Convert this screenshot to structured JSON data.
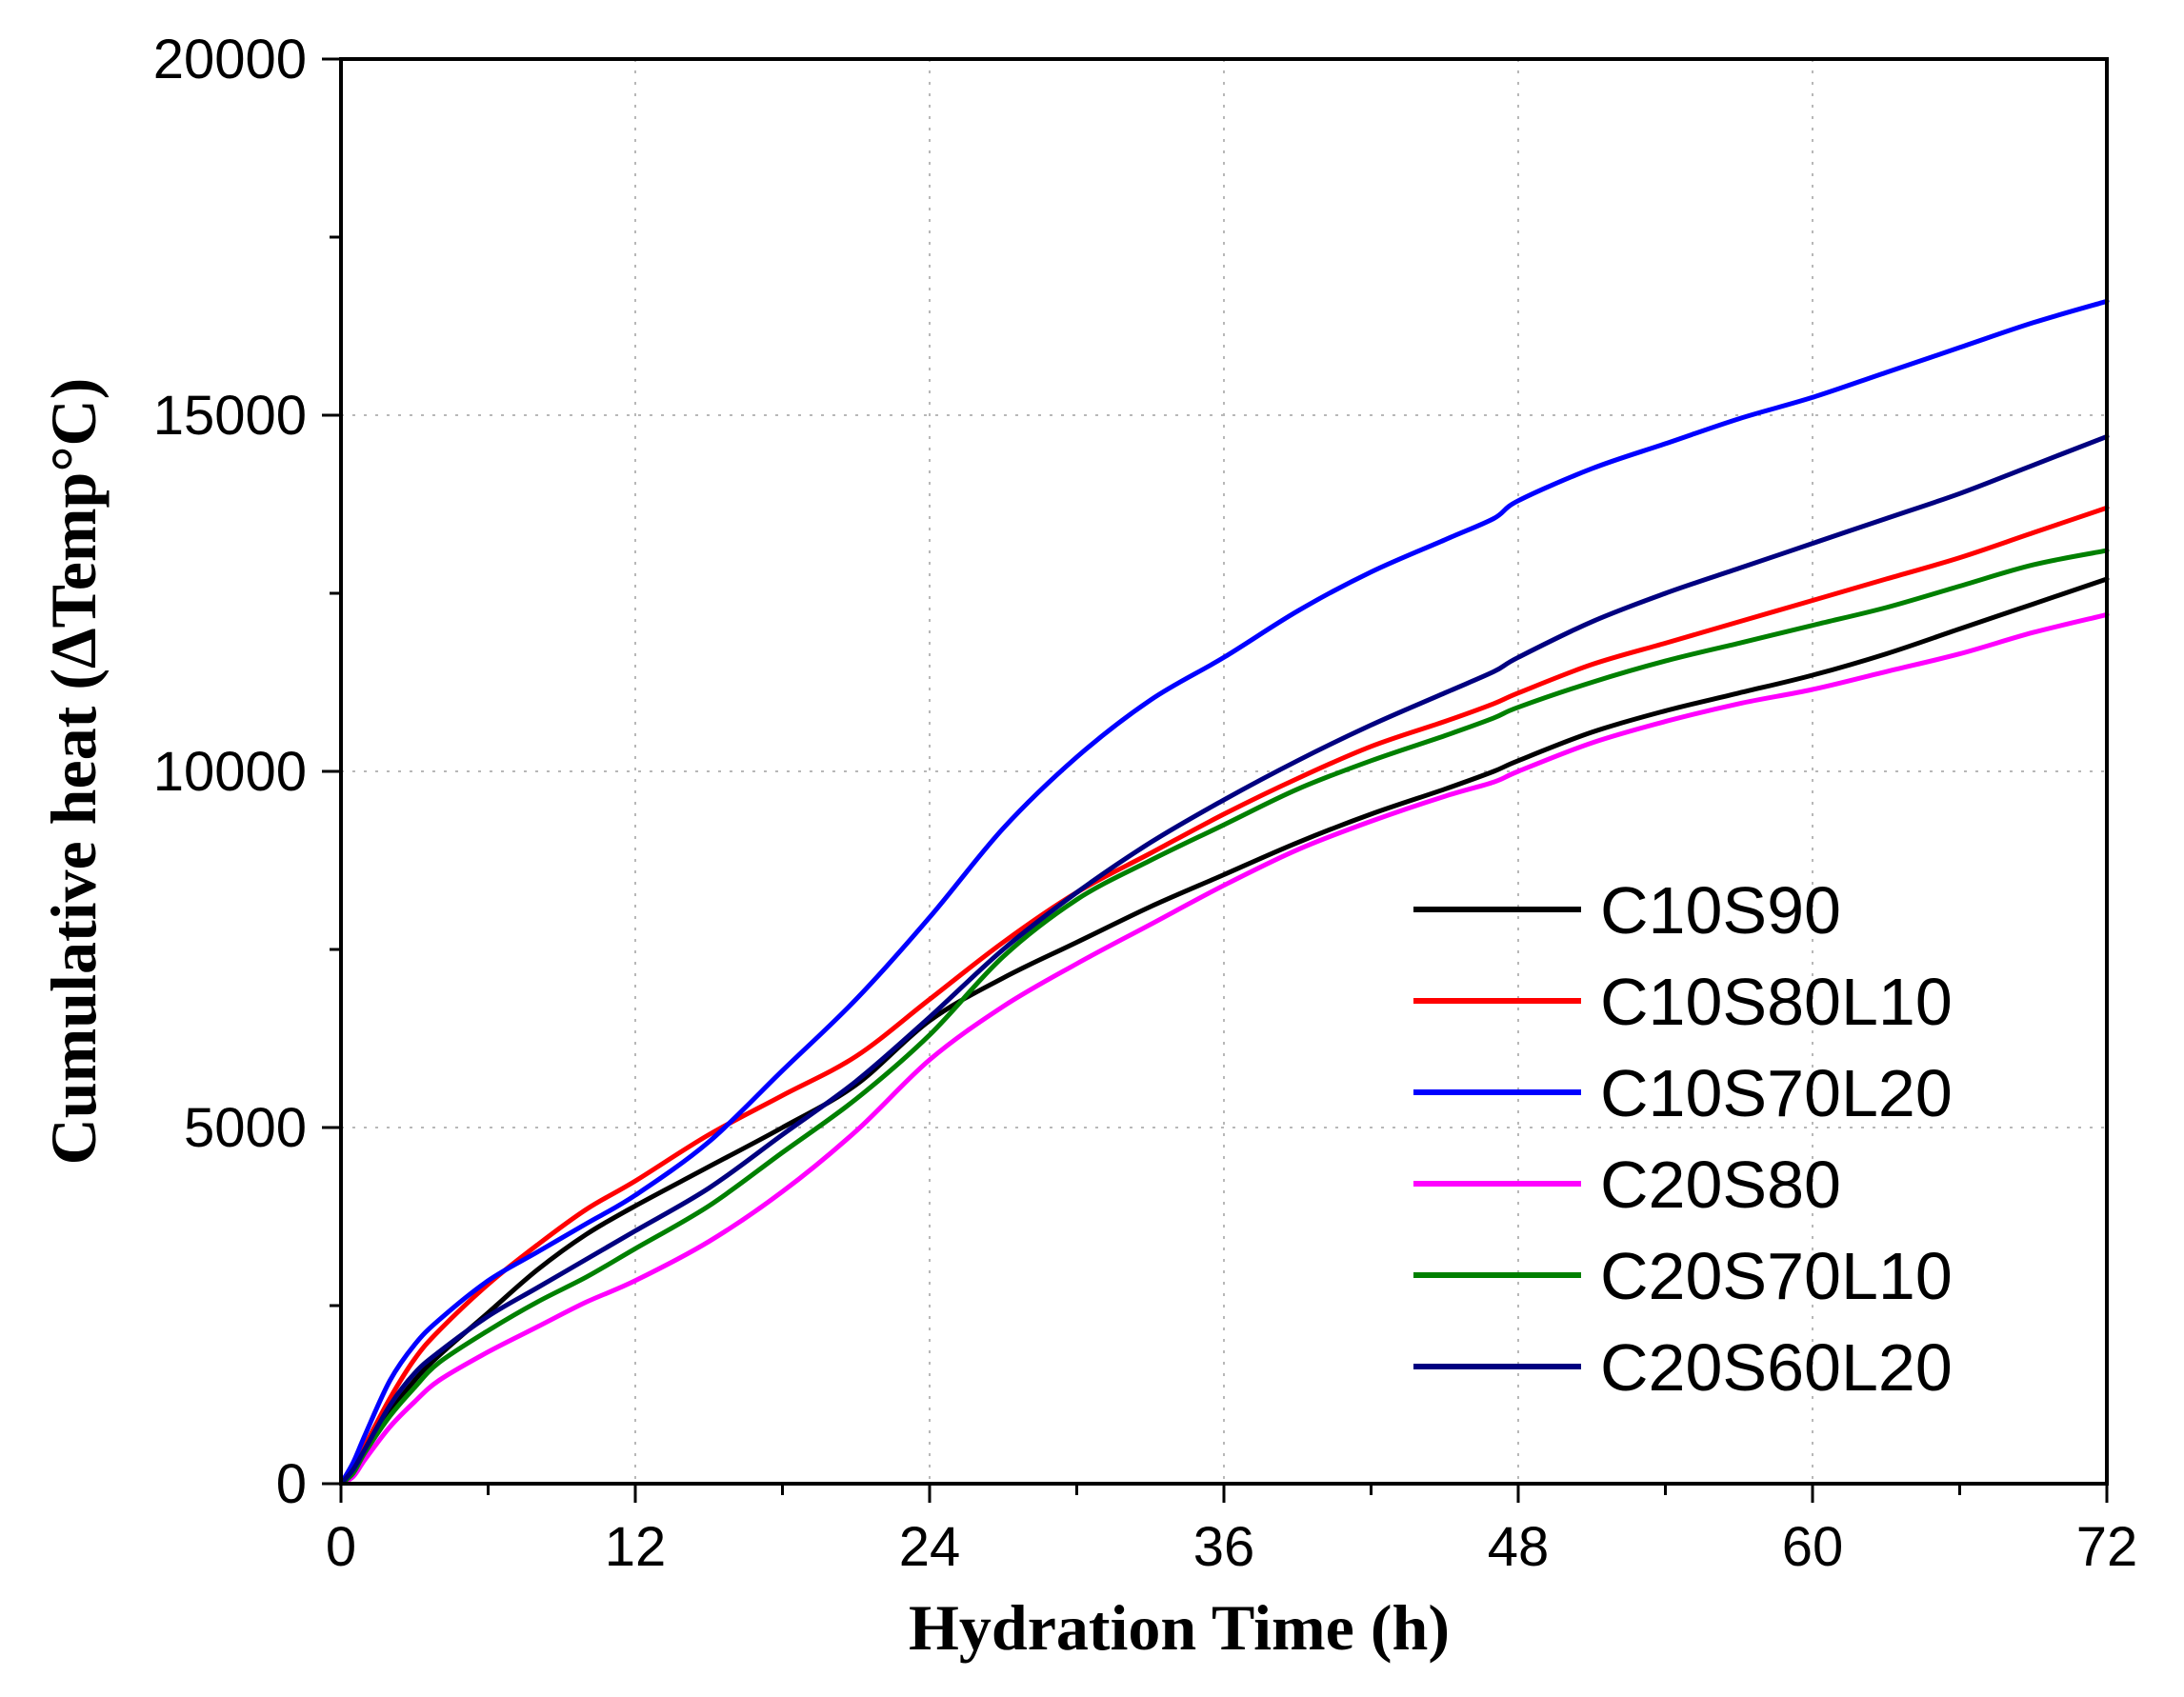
{
  "chart_data": {
    "type": "line",
    "title": "",
    "xlabel": "Hydration Time (h)",
    "ylabel": "Cumulative heat (ΔTemp°C)",
    "xlim": [
      0,
      72
    ],
    "ylim": [
      0,
      20000
    ],
    "xticks": [
      0,
      12,
      24,
      36,
      48,
      60,
      72
    ],
    "xtick_labels": [
      "0",
      "12",
      "24",
      "36",
      "48",
      "60",
      "72"
    ],
    "yticks": [
      0,
      5000,
      10000,
      15000,
      20000
    ],
    "ytick_labels": [
      "0",
      "5000",
      "10000",
      "15000",
      "20000"
    ],
    "grid": true,
    "legend_position": "bottom-right",
    "series": [
      {
        "name": "C10S90",
        "color": "#000000",
        "x": [
          0,
          0.5,
          1,
          2,
          3,
          4,
          6,
          8,
          10,
          12,
          15,
          18,
          21,
          24,
          27,
          30,
          33,
          36,
          39,
          42,
          45,
          47,
          48,
          51,
          54,
          57,
          60,
          63,
          66,
          69,
          72
        ],
        "y": [
          0,
          150,
          450,
          1000,
          1450,
          1800,
          2400,
          3000,
          3500,
          3900,
          4450,
          5000,
          5600,
          6500,
          7100,
          7600,
          8100,
          8550,
          9000,
          9400,
          9750,
          10000,
          10150,
          10550,
          10850,
          11100,
          11350,
          11650,
          12000,
          12350,
          12700
        ]
      },
      {
        "name": "C10S80L10",
        "color": "#ff0000",
        "x": [
          0,
          0.5,
          1,
          2,
          3,
          4,
          6,
          8,
          10,
          12,
          15,
          18,
          21,
          24,
          27,
          30,
          33,
          36,
          39,
          42,
          45,
          47,
          48,
          51,
          54,
          57,
          60,
          63,
          66,
          69,
          72
        ],
        "y": [
          0,
          200,
          550,
          1200,
          1750,
          2150,
          2800,
          3350,
          3850,
          4250,
          4900,
          5450,
          6000,
          6800,
          7600,
          8300,
          8850,
          9400,
          9900,
          10350,
          10700,
          10950,
          11100,
          11500,
          11800,
          12100,
          12400,
          12700,
          13000,
          13350,
          13700
        ]
      },
      {
        "name": "C10S70L20",
        "color": "#0000ff",
        "x": [
          0,
          0.5,
          1,
          2,
          3,
          4,
          6,
          8,
          10,
          12,
          15,
          18,
          21,
          24,
          27,
          30,
          33,
          36,
          39,
          42,
          45,
          47,
          48,
          51,
          54,
          57,
          60,
          63,
          66,
          69,
          72
        ],
        "y": [
          0,
          300,
          700,
          1450,
          1950,
          2300,
          2850,
          3250,
          3650,
          4050,
          4800,
          5800,
          6800,
          7950,
          9200,
          10200,
          11000,
          11600,
          12250,
          12800,
          13250,
          13550,
          13800,
          14250,
          14600,
          14950,
          15250,
          15600,
          15950,
          16300,
          16600
        ]
      },
      {
        "name": "C20S80",
        "color": "#ff00ff",
        "x": [
          0,
          0.5,
          1,
          2,
          3,
          4,
          6,
          8,
          10,
          12,
          15,
          18,
          21,
          24,
          27,
          30,
          33,
          36,
          39,
          42,
          45,
          47,
          48,
          51,
          54,
          57,
          60,
          63,
          66,
          69,
          72
        ],
        "y": [
          0,
          100,
          350,
          800,
          1150,
          1450,
          1850,
          2200,
          2550,
          2850,
          3400,
          4100,
          4950,
          5950,
          6700,
          7300,
          7850,
          8400,
          8900,
          9300,
          9650,
          9850,
          10000,
          10400,
          10700,
          10950,
          11150,
          11400,
          11650,
          11950,
          12200
        ]
      },
      {
        "name": "C20S70L10",
        "color": "#008000",
        "x": [
          0,
          0.5,
          1,
          2,
          3,
          4,
          6,
          8,
          10,
          12,
          15,
          18,
          21,
          24,
          27,
          30,
          33,
          36,
          39,
          42,
          45,
          47,
          48,
          51,
          54,
          57,
          60,
          63,
          66,
          69,
          72
        ],
        "y": [
          0,
          150,
          450,
          950,
          1350,
          1700,
          2150,
          2550,
          2900,
          3300,
          3900,
          4650,
          5400,
          6300,
          7400,
          8200,
          8750,
          9250,
          9750,
          10150,
          10500,
          10750,
          10900,
          11250,
          11550,
          11800,
          12050,
          12300,
          12600,
          12900,
          13100
        ]
      },
      {
        "name": "C20S60L20",
        "color": "#000080",
        "x": [
          0,
          0.5,
          1,
          2,
          3,
          4,
          6,
          8,
          10,
          12,
          15,
          18,
          21,
          24,
          27,
          30,
          33,
          36,
          39,
          42,
          45,
          47,
          48,
          51,
          54,
          57,
          60,
          63,
          66,
          69,
          72
        ],
        "y": [
          0,
          200,
          500,
          1100,
          1550,
          1850,
          2350,
          2750,
          3150,
          3550,
          4150,
          4900,
          5650,
          6550,
          7500,
          8300,
          9000,
          9600,
          10150,
          10650,
          11100,
          11400,
          11600,
          12100,
          12500,
          12850,
          13200,
          13550,
          13900,
          14300,
          14700
        ]
      }
    ]
  }
}
